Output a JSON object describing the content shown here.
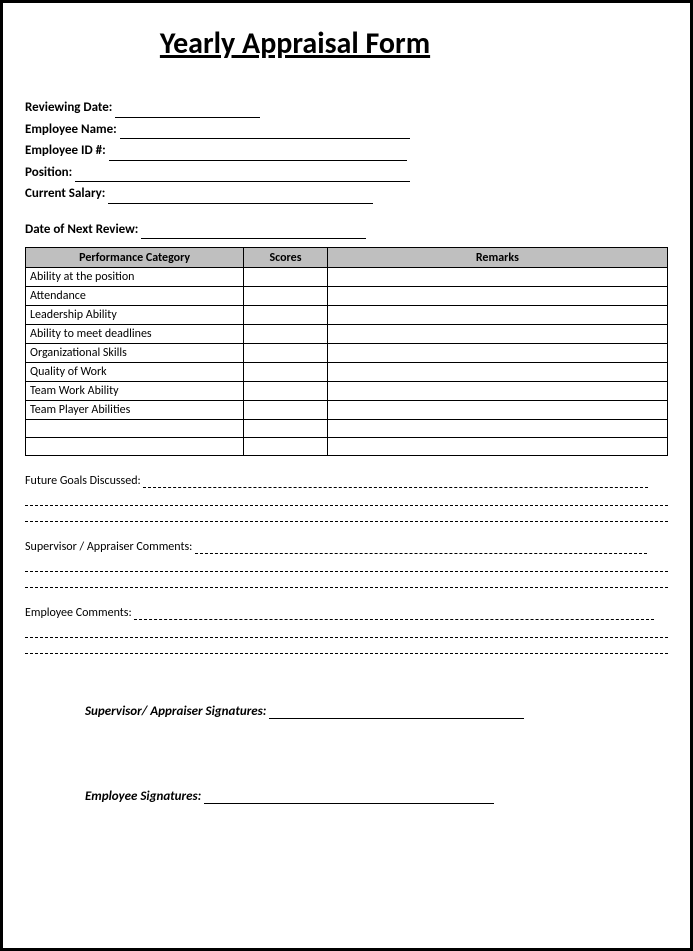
{
  "title": "Yearly Appraisal Form",
  "fields": {
    "reviewing_date": {
      "label": "Reviewing Date:",
      "line_width": 145
    },
    "employee_name": {
      "label": "Employee Name:",
      "line_width": 290
    },
    "employee_id": {
      "label": "Employee ID #:",
      "line_width": 298
    },
    "position": {
      "label": "Position:",
      "line_width": 335
    },
    "current_salary": {
      "label": "Current Salary:",
      "line_width": 265
    },
    "next_review": {
      "label": "Date of Next Review:",
      "line_width": 225
    }
  },
  "table": {
    "headers": [
      "Performance Category",
      "Scores",
      "Remarks"
    ],
    "rows": [
      "Ability at the position",
      "Attendance",
      "Leadership Ability",
      "Ability to meet deadlines",
      "Organizational Skills",
      "Quality of Work",
      "Team Work Ability",
      "Team Player Abilities",
      "",
      ""
    ],
    "header_bg": "#bfbfbf",
    "border_color": "#000000"
  },
  "long_sections": {
    "future_goals": {
      "label": "Future Goals Discussed:",
      "first_line_width": 505,
      "extra_lines": 2
    },
    "supervisor_comments": {
      "label": "Supervisor / Appraiser Comments:",
      "first_line_width": 452,
      "extra_lines": 2
    },
    "employee_comments": {
      "label": "Employee Comments:",
      "first_line_width": 520,
      "extra_lines": 2
    }
  },
  "signatures": {
    "supervisor": {
      "label": "Supervisor/ Appraiser Signatures:",
      "line_width": 255
    },
    "employee": {
      "label": "Employee Signatures:",
      "line_width": 290
    }
  },
  "colors": {
    "page_border": "#000000",
    "background": "#ffffff",
    "text": "#000000"
  }
}
